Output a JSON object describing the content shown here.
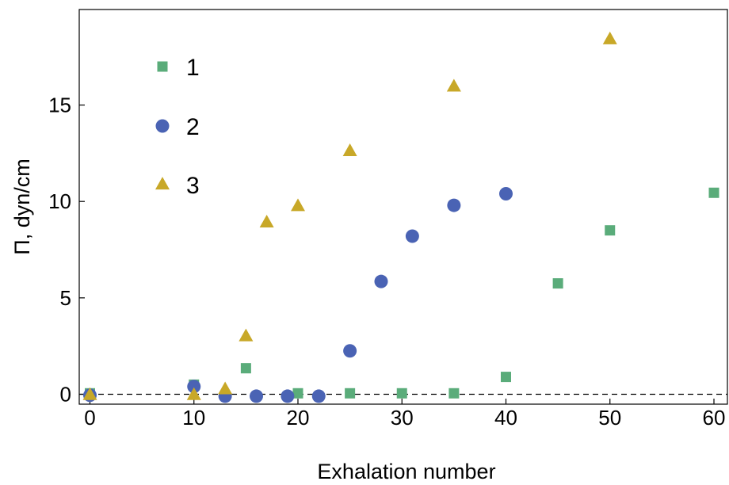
{
  "chart_data": {
    "type": "scatter",
    "xlabel": "Exhalation number",
    "ylabel": "Π, dyn/cm",
    "xlim": [
      -1,
      60
    ],
    "ylim": [
      -1,
      20
    ],
    "xticks": [
      0,
      10,
      20,
      30,
      40,
      50,
      60
    ],
    "yticks": [
      0,
      5,
      10,
      15
    ],
    "reference_line": {
      "y": 0,
      "style": "dashed"
    },
    "legend_placement": "top-left",
    "series": [
      {
        "name": "1",
        "marker": "square",
        "color": "#5aac7a",
        "points": [
          [
            0,
            0.05
          ],
          [
            10,
            0.5
          ],
          [
            15,
            1.35
          ],
          [
            20,
            0.05
          ],
          [
            25,
            0.05
          ],
          [
            30,
            0.05
          ],
          [
            35,
            0.05
          ],
          [
            40,
            0.9
          ],
          [
            45,
            5.75
          ],
          [
            50,
            8.5
          ],
          [
            60,
            10.45
          ]
        ]
      },
      {
        "name": "2",
        "marker": "circle",
        "color": "#4a63b4",
        "points": [
          [
            0,
            -0.05
          ],
          [
            10,
            0.4
          ],
          [
            13,
            -0.1
          ],
          [
            16,
            -0.1
          ],
          [
            19,
            -0.1
          ],
          [
            22,
            -0.1
          ],
          [
            25,
            2.25
          ],
          [
            28,
            5.85
          ],
          [
            31,
            8.2
          ],
          [
            35,
            9.8
          ],
          [
            40,
            10.4
          ]
        ]
      },
      {
        "name": "3",
        "marker": "triangle",
        "color": "#c8a828",
        "points": [
          [
            0,
            -0.05
          ],
          [
            10,
            -0.05
          ],
          [
            13,
            0.25
          ],
          [
            15,
            3.0
          ],
          [
            17,
            8.9
          ],
          [
            20,
            9.75
          ],
          [
            25,
            12.6
          ],
          [
            35,
            15.95
          ],
          [
            50,
            18.4
          ]
        ]
      }
    ]
  }
}
